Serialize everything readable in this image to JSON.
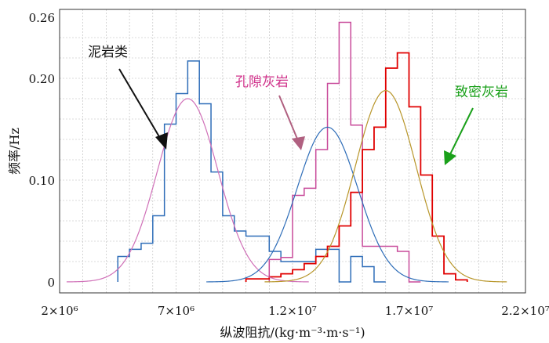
{
  "chart_data": {
    "type": "bar",
    "xlabel": "纵波阻抗/(kg·m⁻³·m·s⁻¹)",
    "ylabel": "频率/Hz",
    "xlim": [
      2000000,
      22000000
    ],
    "ylim": [
      0,
      0.26
    ],
    "x_ticks": [
      {
        "value": 2000000,
        "label": "2×10⁶"
      },
      {
        "value": 7000000,
        "label": "7×10⁶"
      },
      {
        "value": 12000000,
        "label": "1.2×10⁷"
      },
      {
        "value": 17000000,
        "label": "1.7×10⁷"
      },
      {
        "value": 22000000,
        "label": "2.2×10⁷"
      }
    ],
    "y_ticks": [
      {
        "value": 0,
        "label": "0"
      },
      {
        "value": 0.1,
        "label": "0.10"
      },
      {
        "value": 0.2,
        "label": "0.20"
      },
      {
        "value": 0.26,
        "label": "0.26"
      }
    ],
    "grid": true,
    "series": [
      {
        "name": "泥岩类",
        "color": "#2e6db8",
        "curve_color": "#d070b8",
        "bin_edges": [
          4500000,
          5000000,
          5500000,
          6000000,
          6500000,
          7000000,
          7500000,
          8000000,
          8500000,
          9000000,
          9500000,
          10000000,
          10500000,
          11000000,
          11500000,
          12000000,
          12500000,
          13000000,
          13500000,
          14000000,
          14500000,
          15000000,
          15500000
        ],
        "values": [
          0.025,
          0.032,
          0.038,
          0.065,
          0.155,
          0.185,
          0.217,
          0.175,
          0.108,
          0.065,
          0.05,
          0.045,
          0.045,
          0.03,
          0.02,
          0.02,
          0.02,
          0.032,
          0.032,
          0.0,
          0.025,
          0.015,
          0.0
        ],
        "fit_mean": 7500000,
        "fit_sd": 1300000,
        "fit_peak": 0.18
      },
      {
        "name": "孔隙灰岩",
        "color": "#c84a9a",
        "curve_color": "#2e6db8",
        "bin_edges": [
          11000000,
          11500000,
          12000000,
          12500000,
          13000000,
          13500000,
          14000000,
          14500000,
          15000000,
          15500000,
          16000000,
          16500000,
          17000000
        ],
        "values": [
          0.022,
          0.024,
          0.085,
          0.092,
          0.13,
          0.195,
          0.255,
          0.154,
          0.035,
          0.035,
          0.035,
          0.03,
          0.0
        ],
        "fit_mean": 13500000,
        "fit_sd": 1300000,
        "fit_peak": 0.152
      },
      {
        "name": "致密灰岩",
        "color": "#e00000",
        "curve_color": "#b8962a",
        "bin_edges": [
          10000000,
          11000000,
          11500000,
          12000000,
          12500000,
          13000000,
          13500000,
          14000000,
          14500000,
          15000000,
          15500000,
          16000000,
          16500000,
          17000000,
          17500000,
          18000000,
          18500000,
          19000000
        ],
        "values": [
          0.003,
          0.005,
          0.008,
          0.012,
          0.018,
          0.025,
          0.035,
          0.055,
          0.088,
          0.13,
          0.152,
          0.21,
          0.225,
          0.172,
          0.105,
          0.045,
          0.008,
          0.002
        ],
        "fit_mean": 16000000,
        "fit_sd": 1300000,
        "fit_peak": 0.188
      }
    ]
  }
}
